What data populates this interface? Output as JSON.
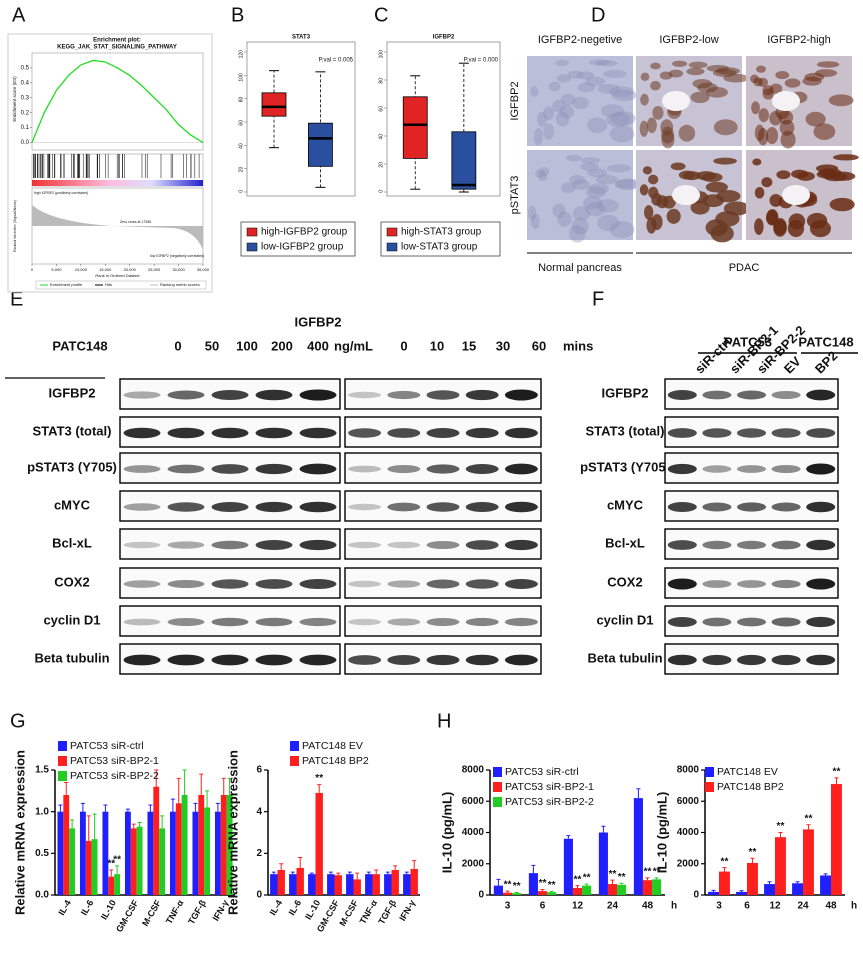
{
  "panel_labels": [
    "A",
    "B",
    "C",
    "D",
    "E",
    "F",
    "G",
    "H"
  ],
  "chart_data": [
    {
      "type": "line",
      "title": "Enrichment plot:",
      "subtitle": "KEGG_JAK_STAT_SIGNALING_PATHWAY",
      "y_label": "Enrichment score (ES)",
      "y2_label": "Ranked list metric (Signal2Noise)",
      "x_label": "Rank in Ordered Dataset",
      "x": [
        0,
        2500,
        5000,
        7500,
        10000,
        12500,
        15000,
        17500,
        20000,
        22500,
        25000,
        27500,
        30000,
        32500,
        35000
      ],
      "values": [
        0,
        0.2,
        0.35,
        0.45,
        0.52,
        0.55,
        0.54,
        0.5,
        0.45,
        0.38,
        0.3,
        0.22,
        0.12,
        0.05,
        0
      ],
      "color": "#22dd22",
      "xlim": [
        0,
        35000
      ],
      "xticks": [
        0,
        {
          "value": 5000,
          "label": "5,000"
        },
        {
          "value": 10000,
          "label": "10,000"
        },
        {
          "value": 15000,
          "label": "15,000"
        },
        {
          "value": 20000,
          "label": "20,000"
        },
        {
          "value": 25000,
          "label": "25,000"
        },
        {
          "value": 30000,
          "label": "30,000"
        },
        {
          "value": 35000,
          "label": "35,000"
        }
      ],
      "ylim": [
        -0.05,
        0.6
      ],
      "yticks": [
        {
          "value": 0,
          "label": "0.0"
        },
        0.1,
        0.2,
        0.3,
        0.4,
        0.5
      ],
      "annotations": [
        "high IGFBP2 (positively correlated)",
        "Zero cross at 17358",
        "low IGFBP2 (negatively correlated)"
      ],
      "legend": [
        "Enrichment profile",
        "Hits",
        "Ranking metric scores"
      ]
    },
    {
      "type": "box",
      "title": "STAT3",
      "annotation": "P.val = 0.005",
      "ylim": [
        0,
        120
      ],
      "yticks": [
        0,
        20,
        40,
        60,
        80,
        100,
        120
      ],
      "series": [
        {
          "name": "high-IGFBP2 group",
          "color": "#e02424",
          "min": 38,
          "q1": 65,
          "median": 73,
          "q3": 85,
          "max": 104
        },
        {
          "name": "low-IGFBP2 group",
          "color": "#2a4f9e",
          "min": 4,
          "q1": 22,
          "median": 46,
          "q3": 59,
          "max": 103
        }
      ]
    },
    {
      "type": "box",
      "title": "IGFBP2",
      "annotation": "P.val = 0.000",
      "ylim": [
        0,
        100
      ],
      "yticks": [
        0,
        20,
        40,
        60,
        80,
        100
      ],
      "series": [
        {
          "name": "high-STAT3 group",
          "color": "#e02424",
          "min": 2,
          "q1": 24,
          "median": 48,
          "q3": 68,
          "max": 83
        },
        {
          "name": "low-STAT3 group",
          "color": "#2a4f9e",
          "min": 0,
          "q1": 2,
          "median": 5,
          "q3": 43,
          "max": 92
        }
      ]
    },
    {
      "type": "bar",
      "y_label": "Relative mRNA expression",
      "categories": [
        "IL-4",
        "IL-6",
        "IL-10",
        "GM-CSF",
        "M-CSF",
        "TNF-α",
        "TGF-β",
        "IFN-γ"
      ],
      "ylim": [
        0,
        1.5
      ],
      "yticks": [
        {
          "value": 0,
          "label": "0.0"
        },
        0.5,
        {
          "value": 1,
          "label": "1.0"
        },
        1.5
      ],
      "series": [
        {
          "name": "PATC53 siR-ctrl",
          "color": "#1f1fff",
          "values": [
            1,
            1,
            1,
            1,
            1,
            1,
            1,
            1
          ],
          "errors": [
            0.08,
            0.1,
            0.08,
            0.03,
            0.08,
            0.15,
            0.1,
            0.1
          ],
          "significance": [
            null,
            null,
            null,
            null,
            null,
            null,
            null,
            null
          ]
        },
        {
          "name": "PATC53 siR-BP2-1",
          "color": "#ff1f1f",
          "values": [
            1.2,
            0.65,
            0.22,
            0.8,
            1.3,
            1.1,
            1.2,
            1.2
          ],
          "errors": [
            0.15,
            0.3,
            0.08,
            0.05,
            0.2,
            0.3,
            0.25,
            0.2
          ],
          "significance": [
            null,
            null,
            "**",
            null,
            null,
            null,
            null,
            null
          ]
        },
        {
          "name": "PATC53 siR-BP2-2",
          "color": "#22cc22",
          "values": [
            0.8,
            0.67,
            0.25,
            0.82,
            0.8,
            1.2,
            1.05,
            1.2
          ],
          "errors": [
            0.1,
            0.3,
            0.1,
            0.05,
            0.15,
            0.3,
            0.2,
            0.2
          ],
          "significance": [
            null,
            null,
            "**",
            null,
            null,
            null,
            null,
            null
          ]
        }
      ]
    },
    {
      "type": "bar",
      "y_label": "Relative mRNA expression",
      "categories": [
        "IL-4",
        "IL-6",
        "IL-10",
        "GM-CSF",
        "M-CSF",
        "TNF-α",
        "TGF-β",
        "IFN-γ"
      ],
      "ylim": [
        0,
        6
      ],
      "yticks": [
        0,
        2,
        4,
        6
      ],
      "series": [
        {
          "name": "PATC148 EV",
          "color": "#1f1fff",
          "values": [
            1,
            1,
            1,
            1,
            1,
            1,
            1,
            1
          ],
          "errors": [
            0.1,
            0.1,
            0.05,
            0.1,
            0.1,
            0.1,
            0.1,
            0.1
          ],
          "significance": [
            null,
            null,
            null,
            null,
            null,
            null,
            null,
            null
          ]
        },
        {
          "name": "PATC148 BP2",
          "color": "#ff1f1f",
          "values": [
            1.2,
            1.3,
            4.9,
            0.95,
            0.75,
            1,
            1.2,
            1.25
          ],
          "errors": [
            0.3,
            0.5,
            0.4,
            0.1,
            0.3,
            0.2,
            0.2,
            0.4
          ],
          "significance": [
            null,
            null,
            "**",
            null,
            null,
            null,
            null,
            null
          ]
        }
      ]
    },
    {
      "type": "bar",
      "y_label": "IL-10 (pg/mL)",
      "categories": [
        "3",
        "6",
        "12",
        "24",
        "48"
      ],
      "x_unit": "h",
      "ylim": [
        0,
        8000
      ],
      "yticks": [
        0,
        2000,
        4000,
        6000,
        8000
      ],
      "series": [
        {
          "name": "PATC53 siR-ctrl",
          "color": "#1f1fff",
          "values": [
            600,
            1400,
            3600,
            4000,
            6200
          ],
          "errors": [
            400,
            500,
            200,
            400,
            600
          ],
          "significance": [
            null,
            null,
            null,
            null,
            null
          ]
        },
        {
          "name": "PATC53 siR-BP2-1",
          "color": "#ff1f1f",
          "values": [
            150,
            250,
            450,
            700,
            950
          ],
          "errors": [
            100,
            100,
            150,
            250,
            150
          ],
          "significance": [
            "**",
            "**",
            "**",
            "**",
            "**"
          ]
        },
        {
          "name": "PATC53 siR-BP2-2",
          "color": "#22cc22",
          "values": [
            120,
            180,
            600,
            650,
            1000
          ],
          "errors": [
            50,
            50,
            100,
            100,
            100
          ],
          "significance": [
            "**",
            "**",
            "**",
            "**",
            "**"
          ]
        }
      ]
    },
    {
      "type": "bar",
      "y_label": "IL-10 (pg/mL)",
      "categories": [
        "3",
        "6",
        "12",
        "24",
        "48"
      ],
      "x_unit": "h",
      "ylim": [
        0,
        8000
      ],
      "yticks": [
        0,
        2000,
        4000,
        6000,
        8000
      ],
      "series": [
        {
          "name": "PATC148 EV",
          "color": "#1f1fff",
          "values": [
            200,
            200,
            700,
            750,
            1250
          ],
          "errors": [
            100,
            80,
            150,
            100,
            100
          ],
          "significance": [
            null,
            null,
            null,
            null,
            null
          ]
        },
        {
          "name": "PATC148 BP2",
          "color": "#ff1f1f",
          "values": [
            1500,
            2050,
            3700,
            4200,
            7100
          ],
          "errors": [
            250,
            300,
            300,
            300,
            400
          ],
          "significance": [
            "**",
            "**",
            "**",
            "**",
            "**"
          ]
        }
      ]
    }
  ],
  "ihc": {
    "columns": [
      "IGFBP2-negetive",
      "IGFBP2-low",
      "IGFBP2-high"
    ],
    "rows": [
      "IGFBP2",
      "pSTAT3"
    ],
    "footers": [
      "Normal pancreas",
      "PDAC"
    ]
  },
  "western_e": {
    "protein": "IGFBP2",
    "cell_line": "PATC148",
    "doses": [
      "0",
      "50",
      "100",
      "200",
      "400"
    ],
    "dose_unit": "ng/mL",
    "times": [
      "0",
      "10",
      "15",
      "30",
      "60"
    ],
    "time_unit": "mins",
    "rows": [
      "IGFBP2",
      "STAT3 (total)",
      "pSTAT3 (Y705)",
      "cMYC",
      "Bcl-xL",
      "COX2",
      "cyclin D1",
      "Beta tubulin"
    ]
  },
  "western_f": {
    "groups": [
      "PATC53",
      "PATC148"
    ],
    "lanes": [
      "siR-ctrl",
      "siR-BP2-1",
      "siR-BP2-2",
      "EV",
      "BP2"
    ],
    "rows": [
      "IGFBP2",
      "STAT3 (total)",
      "pSTAT3 (Y705)",
      "cMYC",
      "Bcl-xL",
      "COX2",
      "cyclin D1",
      "Beta tubulin"
    ]
  }
}
